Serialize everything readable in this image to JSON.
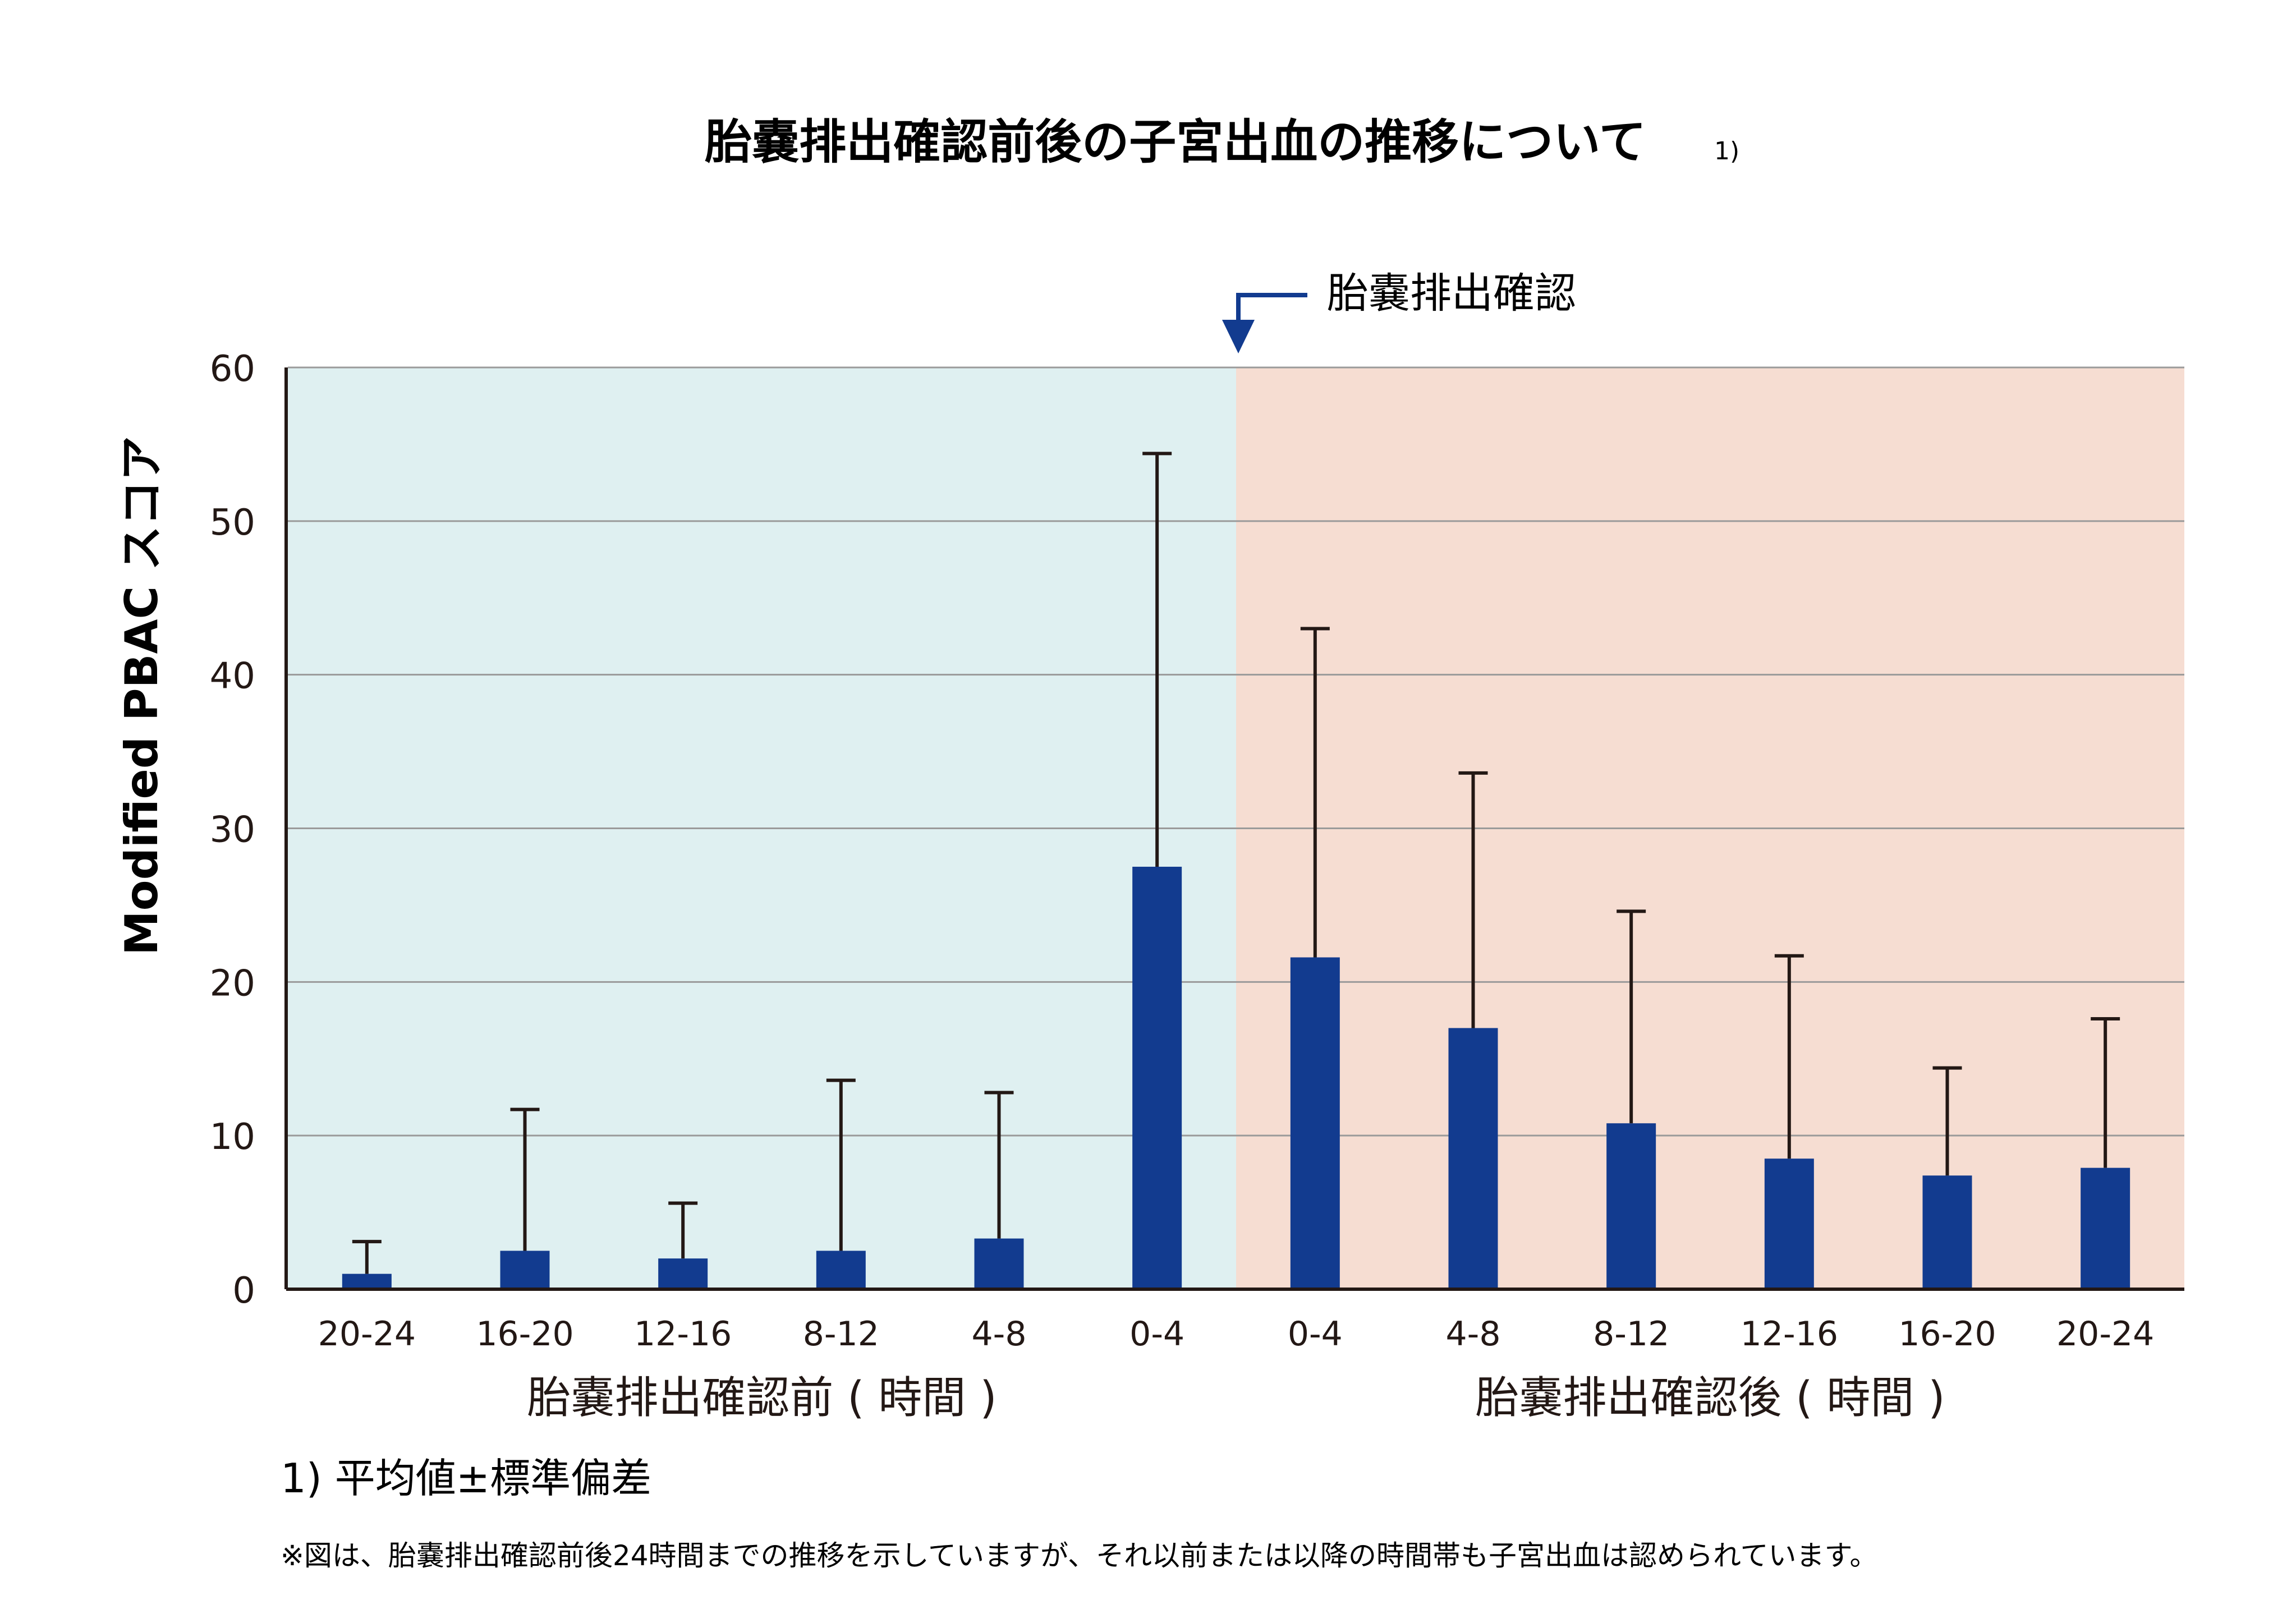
{
  "chart_data": {
    "type": "bar",
    "title": "胎嚢排出確認前後の子宮出血の推移について",
    "title_note": "1)",
    "ylabel": "Modified PBAC スコア",
    "ylim": [
      0,
      60
    ],
    "yticks": [
      0,
      10,
      20,
      30,
      40,
      50,
      60
    ],
    "grid": true,
    "categories": [
      "20-24",
      "16-20",
      "12-16",
      "8-12",
      "4-8",
      "0-4",
      "0-4",
      "4-8",
      "8-12",
      "12-16",
      "16-20",
      "20-24"
    ],
    "values": [
      1.0,
      2.5,
      2.0,
      2.5,
      3.3,
      27.5,
      21.6,
      17.0,
      10.8,
      8.5,
      7.4,
      7.9
    ],
    "error_upper": [
      3.1,
      11.7,
      5.6,
      13.6,
      12.8,
      54.4,
      43.0,
      33.6,
      24.6,
      21.7,
      14.4,
      17.6
    ],
    "groups": [
      {
        "label": "胎嚢排出確認前 ( 時間 )",
        "count": 6,
        "background": "#dff0f1"
      },
      {
        "label": "胎嚢排出確認後 ( 時間 )",
        "count": 6,
        "background": "#f6ddd2"
      }
    ],
    "annotation": "胎嚢排出確認",
    "bar_color": "#123b8f",
    "footnote": "1)  平均値±標準偏差",
    "note": "※図は、胎嚢排出確認前後24時間までの推移を示していますが、それ以前または以降の時間帯も子宮出血は認められています。"
  }
}
